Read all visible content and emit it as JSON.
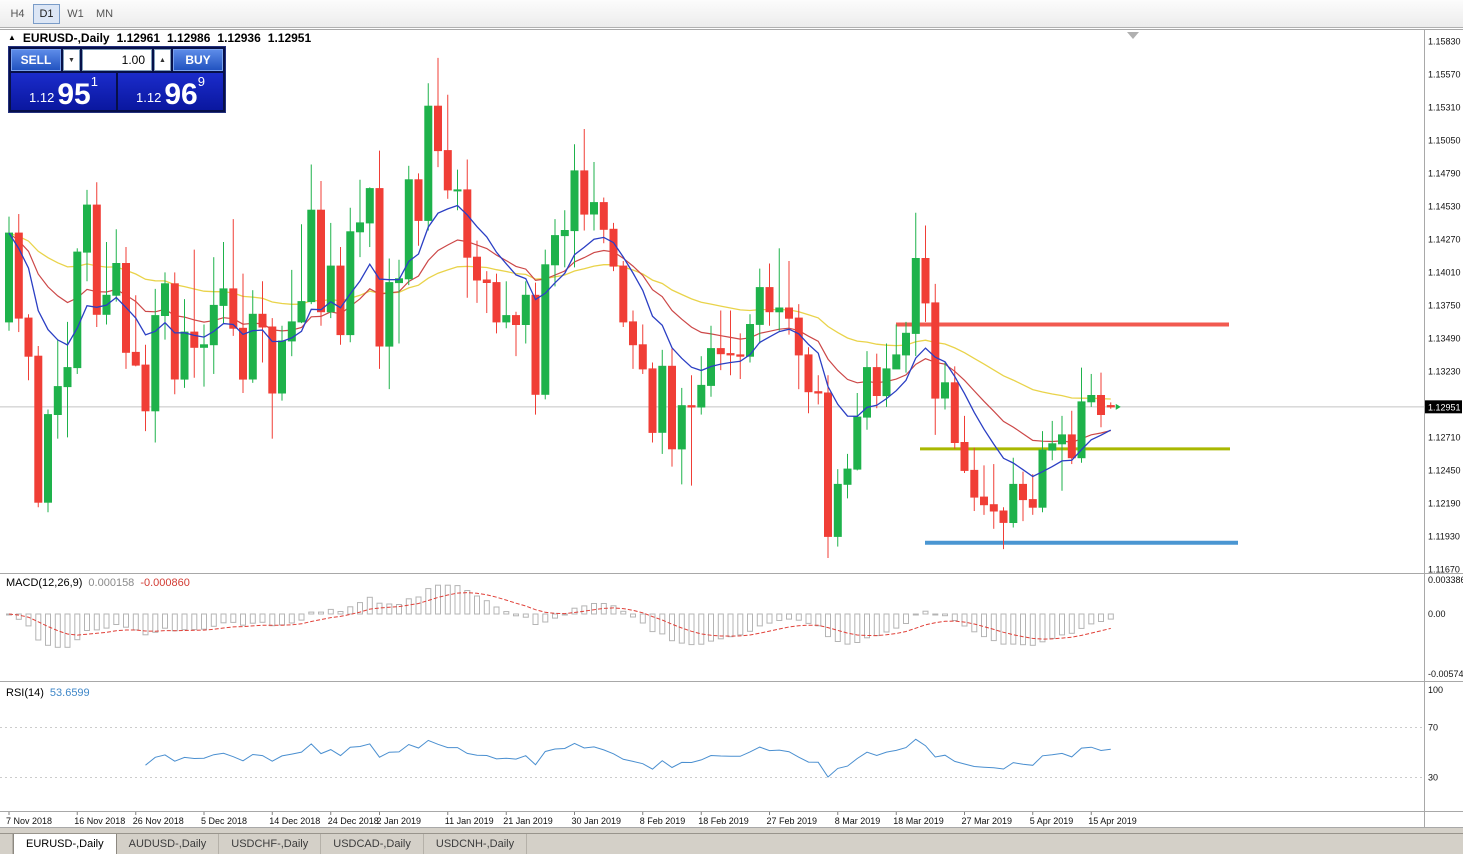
{
  "toolbar": {
    "timeframes": [
      {
        "label": "H4",
        "active": false
      },
      {
        "label": "D1",
        "active": true
      },
      {
        "label": "W1",
        "active": false
      },
      {
        "label": "MN",
        "active": false
      }
    ]
  },
  "chart": {
    "legend": {
      "symbol": "EURUSD-,Daily",
      "open": "1.12961",
      "high": "1.12986",
      "low": "1.12936",
      "close": "1.12951"
    },
    "one_click": {
      "sell_label": "SELL",
      "buy_label": "BUY",
      "volume": "1.00",
      "bid": {
        "prefix": "1.12",
        "big": "95",
        "sup": "1"
      },
      "ask": {
        "prefix": "1.12",
        "big": "96",
        "sup": "9"
      }
    },
    "price_axis": {
      "labels": [
        "1.15830",
        "1.15570",
        "1.15310",
        "1.15050",
        "1.14790",
        "1.14530",
        "1.14270",
        "1.14010",
        "1.13750",
        "1.13490",
        "1.13230",
        "1.12710",
        "1.12450",
        "1.12190",
        "1.11930",
        "1.11670"
      ],
      "current": "1.12951"
    },
    "hlines": [
      {
        "name": "resistance",
        "color": "#f25a50",
        "price": 1.136
      },
      {
        "name": "support-mid",
        "color": "#a9b800",
        "price": 1.1262
      },
      {
        "name": "support-low",
        "color": "#4a96d2",
        "price": 1.1188
      }
    ],
    "ma": {
      "fast_color": "#2b3fc4",
      "medium_color": "#cc4848",
      "slow_color": "#e9d34a"
    },
    "colors": {
      "up": "#1eb24b",
      "down": "#f03e36"
    }
  },
  "macd": {
    "label": "MACD(12,26,9)",
    "main_value": "0.000158",
    "signal_value": "-0.000860",
    "axis": [
      "0.003386",
      "0.00",
      "-0.00574"
    ],
    "fast": 12,
    "slow": 26,
    "signal": 9
  },
  "rsi": {
    "label": "RSI(14)",
    "value": "53.6599",
    "axis": [
      "100",
      "70",
      "30"
    ],
    "period": 14
  },
  "x_axis": {
    "labels": [
      {
        "text": "7 Nov 2018",
        "i": 0
      },
      {
        "text": "16 Nov 2018",
        "i": 7
      },
      {
        "text": "26 Nov 2018",
        "i": 13
      },
      {
        "text": "5 Dec 2018",
        "i": 20
      },
      {
        "text": "14 Dec 2018",
        "i": 27
      },
      {
        "text": "24 Dec 2018",
        "i": 33
      },
      {
        "text": "2 Jan 2019",
        "i": 38
      },
      {
        "text": "11 Jan 2019",
        "i": 45
      },
      {
        "text": "21 Jan 2019",
        "i": 51
      },
      {
        "text": "30 Jan 2019",
        "i": 58
      },
      {
        "text": "8 Feb 2019",
        "i": 65
      },
      {
        "text": "18 Feb 2019",
        "i": 71
      },
      {
        "text": "27 Feb 2019",
        "i": 78
      },
      {
        "text": "8 Mar 2019",
        "i": 85
      },
      {
        "text": "18 Mar 2019",
        "i": 91
      },
      {
        "text": "27 Mar 2019",
        "i": 98
      },
      {
        "text": "5 Apr 2019",
        "i": 105
      },
      {
        "text": "15 Apr 2019",
        "i": 111
      }
    ]
  },
  "tabs": {
    "items": [
      {
        "label": "EURUSD-,Daily",
        "active": true
      },
      {
        "label": "AUDUSD-,Daily",
        "active": false
      },
      {
        "label": "USDCHF-,Daily",
        "active": false
      },
      {
        "label": "USDCAD-,Daily",
        "active": false
      },
      {
        "label": "USDCNH-,Daily",
        "active": false
      }
    ]
  },
  "chart_data": {
    "type": "candlestick",
    "symbol": "EURUSD-",
    "timeframe": "Daily",
    "ohlc_format": [
      "open",
      "high",
      "low",
      "close"
    ],
    "candles": [
      [
        1.1362,
        1.1445,
        1.1355,
        1.1432
      ],
      [
        1.1432,
        1.1447,
        1.1354,
        1.1365
      ],
      [
        1.1365,
        1.1368,
        1.1316,
        1.1335
      ],
      [
        1.1335,
        1.1343,
        1.1216,
        1.122
      ],
      [
        1.122,
        1.1293,
        1.1212,
        1.1289
      ],
      [
        1.1289,
        1.1348,
        1.127,
        1.1311
      ],
      [
        1.1311,
        1.1362,
        1.1271,
        1.1326
      ],
      [
        1.1326,
        1.142,
        1.1321,
        1.1417
      ],
      [
        1.1417,
        1.1466,
        1.1394,
        1.1454
      ],
      [
        1.1454,
        1.1472,
        1.1358,
        1.1368
      ],
      [
        1.1368,
        1.1425,
        1.136,
        1.1383
      ],
      [
        1.1383,
        1.1435,
        1.1378,
        1.1408
      ],
      [
        1.1408,
        1.1421,
        1.1325,
        1.1338
      ],
      [
        1.1338,
        1.1383,
        1.1327,
        1.1328
      ],
      [
        1.1328,
        1.1344,
        1.1276,
        1.1292
      ],
      [
        1.1292,
        1.1388,
        1.1267,
        1.1367
      ],
      [
        1.1367,
        1.1401,
        1.1348,
        1.1392
      ],
      [
        1.1392,
        1.1401,
        1.1305,
        1.1317
      ],
      [
        1.1317,
        1.138,
        1.131,
        1.1354
      ],
      [
        1.1354,
        1.1419,
        1.1318,
        1.1342
      ],
      [
        1.1342,
        1.136,
        1.1311,
        1.1344
      ],
      [
        1.1344,
        1.1413,
        1.1321,
        1.1375
      ],
      [
        1.1375,
        1.1425,
        1.1361,
        1.1388
      ],
      [
        1.1388,
        1.1443,
        1.1351,
        1.1357
      ],
      [
        1.1357,
        1.14,
        1.1306,
        1.1317
      ],
      [
        1.1317,
        1.1387,
        1.1314,
        1.1368
      ],
      [
        1.1368,
        1.1394,
        1.133,
        1.1358
      ],
      [
        1.1358,
        1.1365,
        1.127,
        1.1306
      ],
      [
        1.1306,
        1.1359,
        1.13,
        1.1347
      ],
      [
        1.1347,
        1.1403,
        1.1335,
        1.1362
      ],
      [
        1.1362,
        1.1439,
        1.1361,
        1.1378
      ],
      [
        1.1378,
        1.1486,
        1.1376,
        1.145
      ],
      [
        1.145,
        1.1473,
        1.1359,
        1.137
      ],
      [
        1.137,
        1.144,
        1.1365,
        1.1406
      ],
      [
        1.1406,
        1.1421,
        1.1344,
        1.1352
      ],
      [
        1.1352,
        1.1452,
        1.1346,
        1.1433
      ],
      [
        1.1433,
        1.1474,
        1.1413,
        1.144
      ],
      [
        1.144,
        1.1468,
        1.1421,
        1.1467
      ],
      [
        1.1467,
        1.1497,
        1.1325,
        1.1343
      ],
      [
        1.1343,
        1.1412,
        1.1309,
        1.1393
      ],
      [
        1.1393,
        1.1411,
        1.1345,
        1.1396
      ],
      [
        1.1396,
        1.1485,
        1.1391,
        1.1474
      ],
      [
        1.1474,
        1.1479,
        1.1422,
        1.1442
      ],
      [
        1.1442,
        1.155,
        1.1434,
        1.1532
      ],
      [
        1.1532,
        1.157,
        1.1484,
        1.1497
      ],
      [
        1.1497,
        1.1541,
        1.1459,
        1.1466
      ],
      [
        1.1466,
        1.1482,
        1.145,
        1.1466
      ],
      [
        1.1466,
        1.149,
        1.1381,
        1.1413
      ],
      [
        1.1413,
        1.1426,
        1.1377,
        1.1395
      ],
      [
        1.1395,
        1.1402,
        1.1369,
        1.1393
      ],
      [
        1.1393,
        1.14,
        1.1353,
        1.1362
      ],
      [
        1.1362,
        1.1394,
        1.1357,
        1.1367
      ],
      [
        1.1367,
        1.137,
        1.1335,
        1.136
      ],
      [
        1.136,
        1.1394,
        1.1345,
        1.1383
      ],
      [
        1.1383,
        1.1393,
        1.1289,
        1.1305
      ],
      [
        1.1305,
        1.1419,
        1.1301,
        1.1407
      ],
      [
        1.1407,
        1.1443,
        1.139,
        1.143
      ],
      [
        1.143,
        1.145,
        1.1405,
        1.1434
      ],
      [
        1.1434,
        1.1502,
        1.1405,
        1.1481
      ],
      [
        1.1481,
        1.1514,
        1.1434,
        1.1447
      ],
      [
        1.1447,
        1.1488,
        1.1434,
        1.1456
      ],
      [
        1.1456,
        1.146,
        1.1424,
        1.1435
      ],
      [
        1.1435,
        1.144,
        1.1402,
        1.1406
      ],
      [
        1.1406,
        1.141,
        1.1358,
        1.1362
      ],
      [
        1.1362,
        1.1371,
        1.1325,
        1.1344
      ],
      [
        1.1344,
        1.136,
        1.1321,
        1.1325
      ],
      [
        1.1325,
        1.133,
        1.1267,
        1.1275
      ],
      [
        1.1275,
        1.134,
        1.1258,
        1.1327
      ],
      [
        1.1327,
        1.1341,
        1.1248,
        1.1262
      ],
      [
        1.1262,
        1.131,
        1.1234,
        1.1296
      ],
      [
        1.1296,
        1.132,
        1.1233,
        1.1295
      ],
      [
        1.1295,
        1.1335,
        1.1289,
        1.1312
      ],
      [
        1.1312,
        1.1359,
        1.1303,
        1.1341
      ],
      [
        1.1341,
        1.1371,
        1.1324,
        1.1337
      ],
      [
        1.1337,
        1.1371,
        1.132,
        1.1336
      ],
      [
        1.1336,
        1.1353,
        1.1317,
        1.1335
      ],
      [
        1.1335,
        1.1368,
        1.133,
        1.136
      ],
      [
        1.136,
        1.1404,
        1.1345,
        1.1389
      ],
      [
        1.1389,
        1.1408,
        1.1359,
        1.137
      ],
      [
        1.137,
        1.142,
        1.1355,
        1.1373
      ],
      [
        1.1373,
        1.141,
        1.1352,
        1.1365
      ],
      [
        1.1365,
        1.1376,
        1.1309,
        1.1336
      ],
      [
        1.1336,
        1.1342,
        1.129,
        1.1307
      ],
      [
        1.1307,
        1.132,
        1.1297,
        1.1306
      ],
      [
        1.1306,
        1.132,
        1.1176,
        1.1193
      ],
      [
        1.1193,
        1.1246,
        1.1185,
        1.1234
      ],
      [
        1.1234,
        1.1258,
        1.1223,
        1.1246
      ],
      [
        1.1246,
        1.1306,
        1.1245,
        1.1287
      ],
      [
        1.1287,
        1.1339,
        1.1277,
        1.1326
      ],
      [
        1.1326,
        1.1337,
        1.1294,
        1.1304
      ],
      [
        1.1304,
        1.1345,
        1.1295,
        1.1325
      ],
      [
        1.1325,
        1.136,
        1.1325,
        1.1336
      ],
      [
        1.1336,
        1.1362,
        1.1322,
        1.1353
      ],
      [
        1.1353,
        1.1448,
        1.1335,
        1.1412
      ],
      [
        1.1412,
        1.1438,
        1.1362,
        1.1377
      ],
      [
        1.1377,
        1.1392,
        1.1273,
        1.1302
      ],
      [
        1.1302,
        1.133,
        1.1293,
        1.1314
      ],
      [
        1.1314,
        1.1327,
        1.1262,
        1.1267
      ],
      [
        1.1267,
        1.1288,
        1.1243,
        1.1245
      ],
      [
        1.1245,
        1.1263,
        1.1213,
        1.1224
      ],
      [
        1.1224,
        1.1249,
        1.121,
        1.1218
      ],
      [
        1.1218,
        1.125,
        1.1199,
        1.1213
      ],
      [
        1.1213,
        1.1216,
        1.1183,
        1.1204
      ],
      [
        1.1204,
        1.1255,
        1.12,
        1.1234
      ],
      [
        1.1234,
        1.1244,
        1.1205,
        1.1222
      ],
      [
        1.1222,
        1.1242,
        1.121,
        1.1216
      ],
      [
        1.1216,
        1.1276,
        1.1212,
        1.1261
      ],
      [
        1.1261,
        1.1284,
        1.1253,
        1.1266
      ],
      [
        1.1266,
        1.1288,
        1.1229,
        1.1273
      ],
      [
        1.1273,
        1.1292,
        1.125,
        1.1255
      ],
      [
        1.1255,
        1.1326,
        1.1251,
        1.1299
      ],
      [
        1.1299,
        1.1321,
        1.1295,
        1.1304
      ],
      [
        1.1304,
        1.1322,
        1.1279,
        1.1289
      ],
      [
        1.12961,
        1.12986,
        1.12936,
        1.12951
      ]
    ]
  }
}
